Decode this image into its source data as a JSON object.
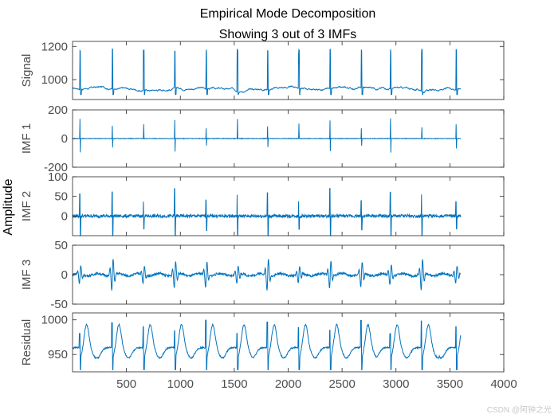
{
  "chart_data": {
    "type": "line",
    "title": "Empirical Mode Decomposition",
    "subtitle": "Showing 3 out of 3 IMFs",
    "common_ylabel": "Amplitude",
    "line_color": "#0072bd",
    "samples": 3600,
    "xlim": [
      0,
      4000
    ],
    "xticks": [
      500,
      1000,
      1500,
      2000,
      2500,
      3000,
      3500,
      4000
    ],
    "xtick_labels": [
      "500",
      "1000",
      "1500",
      "2000",
      "2500",
      "3000",
      "3500",
      "4000"
    ],
    "beat_positions": [
      70,
      370,
      660,
      950,
      1240,
      1530,
      1810,
      2100,
      2390,
      2680,
      2950,
      3240,
      3560
    ],
    "panels": [
      {
        "name": "Signal",
        "ylabel": "Signal",
        "ylim": [
          880,
          1230
        ],
        "yticks": [
          1000,
          1200
        ],
        "ytick_labels": [
          "1000",
          "1200"
        ],
        "baseline": 945,
        "spike": 1185
      },
      {
        "name": "IMF 1",
        "ylabel": "IMF 1",
        "ylim": [
          -200,
          200
        ],
        "yticks": [
          -200,
          0,
          200
        ],
        "ytick_labels": [
          "-200",
          "0",
          "200"
        ],
        "baseline": 0,
        "spike": 140
      },
      {
        "name": "IMF 2",
        "ylabel": "IMF 2",
        "ylim": [
          -50,
          100
        ],
        "yticks": [
          0,
          50,
          100
        ],
        "ytick_labels": [
          "0",
          "50",
          "100"
        ],
        "baseline": 0,
        "spike": 70
      },
      {
        "name": "IMF 3",
        "ylabel": "IMF 3",
        "ylim": [
          -50,
          50
        ],
        "yticks": [
          -50,
          0,
          50
        ],
        "ytick_labels": [
          "-50",
          "0",
          "50"
        ],
        "baseline": 0,
        "spike": 40
      },
      {
        "name": "Residual",
        "ylabel": "Residual",
        "ylim": [
          925,
          1010
        ],
        "yticks": [
          950,
          1000
        ],
        "ytick_labels": [
          "950",
          "1000"
        ],
        "baseline": 960,
        "spike": 40
      }
    ]
  },
  "watermark": "CSDN @阿钟之光"
}
